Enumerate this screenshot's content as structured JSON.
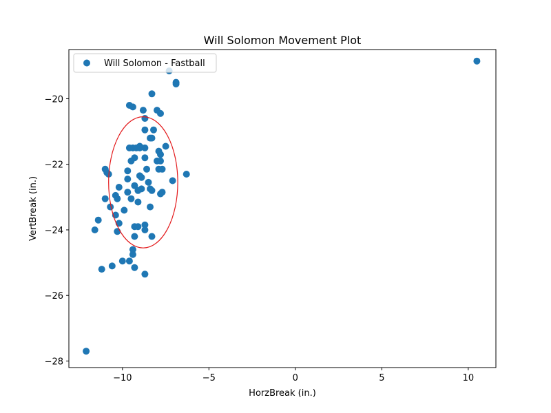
{
  "chart_data": {
    "type": "scatter",
    "title": "Will Solomon Movement Plot",
    "xlabel": "HorzBreak (in.)",
    "ylabel": "VertBreak (in.)",
    "xlim": [
      -13.1,
      11.6
    ],
    "ylim": [
      -28.2,
      -18.5
    ],
    "xticks": [
      -10,
      -5,
      0,
      5,
      10
    ],
    "yticks": [
      -28,
      -26,
      -24,
      -22,
      -20
    ],
    "tick_labels_x": [
      "−10",
      "−5",
      "0",
      "5",
      "10"
    ],
    "tick_labels_y": [
      "−28",
      "−26",
      "−24",
      "−22",
      "−20"
    ],
    "grid": false,
    "legend": {
      "position": "top-left",
      "entries": [
        "Will Solomon - Fastball"
      ]
    },
    "colors": {
      "points": "#1f77b4",
      "ellipse": "#e31a1c"
    },
    "ellipse": {
      "center": [
        -8.8,
        -22.55
      ],
      "width": 4.0,
      "height": 4.0
    },
    "series": [
      {
        "name": "Will Solomon - Fastball",
        "x": [
          10.5,
          -7.3,
          -6.9,
          -6.9,
          -8.3,
          -9.6,
          -9.4,
          -8.8,
          -8.0,
          -7.8,
          -8.7,
          -8.7,
          -8.2,
          -8.4,
          -8.3,
          -7.5,
          -9.6,
          -9.4,
          -9.2,
          -9.0,
          -9.0,
          -8.7,
          -7.9,
          -7.8,
          -9.3,
          -9.5,
          -8.7,
          -8.0,
          -7.8,
          -11.0,
          -10.9,
          -10.8,
          -9.7,
          -8.6,
          -7.9,
          -7.7,
          -6.3,
          -9.0,
          -8.9,
          -9.7,
          -8.5,
          -7.1,
          -10.2,
          -9.3,
          -8.4,
          -8.9,
          -8.3,
          -9.1,
          -9.7,
          -7.8,
          -7.7,
          -11.0,
          -10.4,
          -10.3,
          -9.5,
          -9.1,
          -10.7,
          -8.4,
          -9.9,
          -10.4,
          -11.4,
          -10.2,
          -11.6,
          -9.3,
          -9.1,
          -8.7,
          -10.3,
          -8.7,
          -8.3,
          -9.3,
          -9.4,
          -9.4,
          -10.0,
          -9.6,
          -10.6,
          -9.3,
          -11.2,
          -8.7,
          -12.1
        ],
        "y": [
          -18.85,
          -19.15,
          -19.5,
          -19.55,
          -19.85,
          -20.2,
          -20.25,
          -20.35,
          -20.35,
          -20.45,
          -20.6,
          -20.95,
          -20.95,
          -21.2,
          -21.2,
          -21.45,
          -21.5,
          -21.5,
          -21.5,
          -21.45,
          -21.5,
          -21.5,
          -21.6,
          -21.7,
          -21.8,
          -21.9,
          -21.8,
          -21.9,
          -21.9,
          -22.15,
          -22.25,
          -22.3,
          -22.2,
          -22.15,
          -22.15,
          -22.15,
          -22.3,
          -22.35,
          -22.4,
          -22.45,
          -22.55,
          -22.5,
          -22.7,
          -22.65,
          -22.75,
          -22.75,
          -22.8,
          -22.8,
          -22.85,
          -22.9,
          -22.85,
          -23.05,
          -22.95,
          -23.05,
          -23.05,
          -23.15,
          -23.3,
          -23.3,
          -23.4,
          -23.55,
          -23.7,
          -23.8,
          -24.0,
          -23.9,
          -23.9,
          -23.85,
          -24.05,
          -24.0,
          -24.2,
          -24.2,
          -24.6,
          -24.75,
          -24.95,
          -24.95,
          -25.1,
          -25.15,
          -25.2,
          -25.35,
          -27.7
        ]
      }
    ]
  }
}
